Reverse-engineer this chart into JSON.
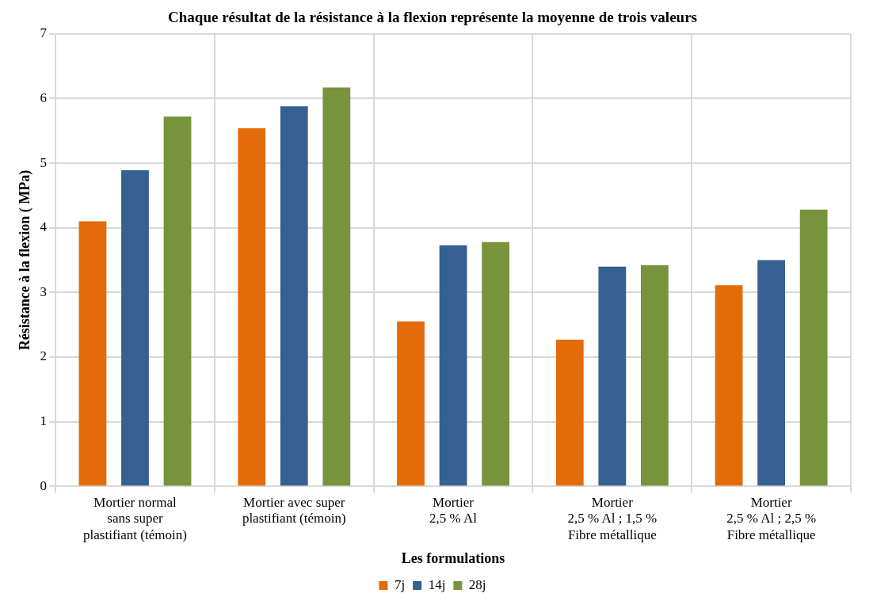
{
  "chart_data": {
    "type": "bar",
    "title": "Chaque résultat de la résistance à la flexion représente la moyenne de trois valeurs",
    "xlabel": "Les formulations",
    "ylabel": "Résistance à la flexion ( MPa)",
    "categories": [
      [
        "Mortier normal",
        "sans super",
        "plastifiant (témoin)"
      ],
      [
        "Mortier avec super",
        "plastifiant (témoin)"
      ],
      [
        "Mortier",
        "2,5 % Al"
      ],
      [
        "Mortier",
        "2,5 % Al ; 1,5 %",
        "Fibre métallique"
      ],
      [
        "Mortier",
        "2,5 % Al ; 2,5 %",
        "Fibre métallique"
      ]
    ],
    "series": [
      {
        "name": "7j",
        "color": "#e36c0a",
        "values": [
          4.1,
          5.54,
          2.55,
          2.27,
          3.11
        ]
      },
      {
        "name": "14j",
        "color": "#366092",
        "values": [
          4.89,
          5.88,
          3.73,
          3.4,
          3.5
        ]
      },
      {
        "name": "28j",
        "color": "#77933c",
        "values": [
          5.72,
          6.17,
          3.78,
          3.42,
          4.28
        ]
      }
    ],
    "ylim": [
      0,
      7
    ],
    "yticks": [
      0,
      1,
      2,
      3,
      4,
      5,
      6,
      7
    ],
    "grid": true,
    "legend": "bottom"
  }
}
